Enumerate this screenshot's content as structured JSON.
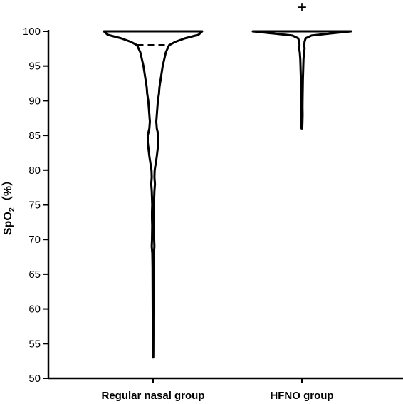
{
  "chart_data": {
    "type": "violin",
    "title": "",
    "xlabel": "",
    "ylabel": {
      "main": "SpO",
      "subscript": "2",
      "suffix": "（%）"
    },
    "ylim": [
      50,
      100
    ],
    "yticks": [
      50,
      55,
      60,
      65,
      70,
      75,
      80,
      85,
      90,
      95,
      100
    ],
    "grid": false,
    "legend": "none",
    "colors": {
      "outline": "#000000",
      "fill": "#ffffff"
    },
    "categories": [
      "Regular nasal group",
      "HFNO group"
    ],
    "series": [
      {
        "category": "Regular nasal group",
        "min": 53,
        "max": 100,
        "median": 98,
        "density_profile": [
          [
            100,
            0.92
          ],
          [
            99.5,
            0.85
          ],
          [
            99,
            0.6
          ],
          [
            98.5,
            0.42
          ],
          [
            98,
            0.3
          ],
          [
            97,
            0.24
          ],
          [
            96,
            0.21
          ],
          [
            95,
            0.18
          ],
          [
            94,
            0.16
          ],
          [
            93,
            0.14
          ],
          [
            92,
            0.12
          ],
          [
            91,
            0.11
          ],
          [
            90,
            0.09
          ],
          [
            89,
            0.08
          ],
          [
            88,
            0.07
          ],
          [
            87,
            0.06
          ],
          [
            86,
            0.07
          ],
          [
            85,
            0.1
          ],
          [
            84,
            0.1
          ],
          [
            83,
            0.085
          ],
          [
            82,
            0.07
          ],
          [
            81,
            0.05
          ],
          [
            80,
            0.03
          ],
          [
            79,
            0.025
          ],
          [
            78,
            0.035
          ],
          [
            77,
            0.025
          ],
          [
            76,
            0.02
          ],
          [
            75,
            0.016
          ],
          [
            74,
            0.02
          ],
          [
            73,
            0.02
          ],
          [
            72,
            0.016
          ],
          [
            71,
            0.018
          ],
          [
            70,
            0.02
          ],
          [
            69,
            0.025
          ],
          [
            68,
            0.014
          ],
          [
            66,
            0.01
          ],
          [
            64,
            0.009
          ],
          [
            62,
            0.008
          ],
          [
            60,
            0.007
          ],
          [
            58,
            0.006
          ],
          [
            56,
            0.006
          ],
          [
            54,
            0.005
          ],
          [
            53,
            0.004
          ]
        ]
      },
      {
        "category": "HFNO group",
        "min": 86,
        "max": 100,
        "median": 100,
        "density_profile": [
          [
            100,
            0.92
          ],
          [
            99.7,
            0.55
          ],
          [
            99.4,
            0.18
          ],
          [
            99,
            0.07
          ],
          [
            98.5,
            0.05
          ],
          [
            98,
            0.045
          ],
          [
            97.5,
            0.05
          ],
          [
            97,
            0.04
          ],
          [
            96.5,
            0.035
          ],
          [
            96,
            0.03
          ],
          [
            95,
            0.026
          ],
          [
            94,
            0.022
          ],
          [
            93,
            0.018
          ],
          [
            92,
            0.016
          ],
          [
            91,
            0.014
          ],
          [
            90,
            0.012
          ],
          [
            89,
            0.011
          ],
          [
            88,
            0.013
          ],
          [
            87,
            0.01
          ],
          [
            86,
            0.006
          ]
        ]
      }
    ],
    "annotations": [
      {
        "category": "HFNO group",
        "text": "+"
      }
    ]
  }
}
